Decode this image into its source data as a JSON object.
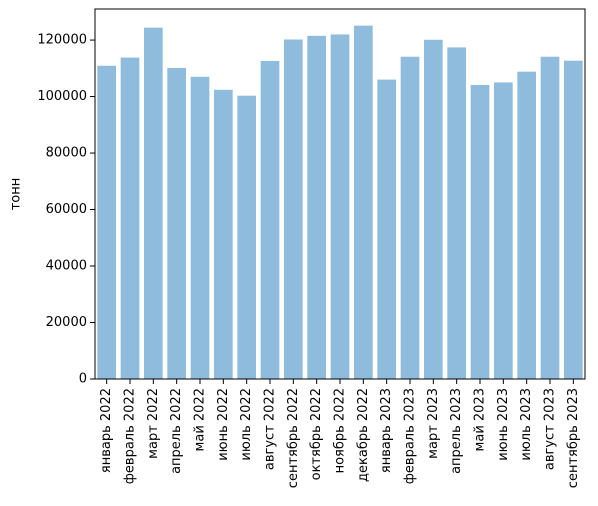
{
  "chart_data": {
    "type": "bar",
    "title": "",
    "xlabel": "",
    "ylabel": "тонн",
    "ylim": [
      0,
      131000
    ],
    "yticks": [
      0,
      20000,
      40000,
      60000,
      80000,
      100000,
      120000
    ],
    "ytick_labels": [
      "0",
      "20000",
      "40000",
      "60000",
      "80000",
      "100000",
      "120000"
    ],
    "bar_color": "#8fbbdc",
    "grid": false,
    "categories": [
      "январь 2022",
      "февраль 2022",
      "март 2022",
      "апрель 2022",
      "май 2022",
      "июнь 2022",
      "июль 2022",
      "август 2022",
      "сентябрь 2022",
      "октябрь 2022",
      "ноябрь 2022",
      "декабрь 2022",
      "январь 2023",
      "февраль 2023",
      "март 2023",
      "апрель 2023",
      "май 2023",
      "июнь 2023",
      "июль 2023",
      "август 2023",
      "сентябрь 2023"
    ],
    "values": [
      110900,
      113800,
      124400,
      110100,
      107000,
      102400,
      100300,
      112600,
      120200,
      121500,
      122000,
      125100,
      106000,
      114100,
      120100,
      117400,
      104100,
      105000,
      108800,
      114100,
      112700
    ]
  }
}
